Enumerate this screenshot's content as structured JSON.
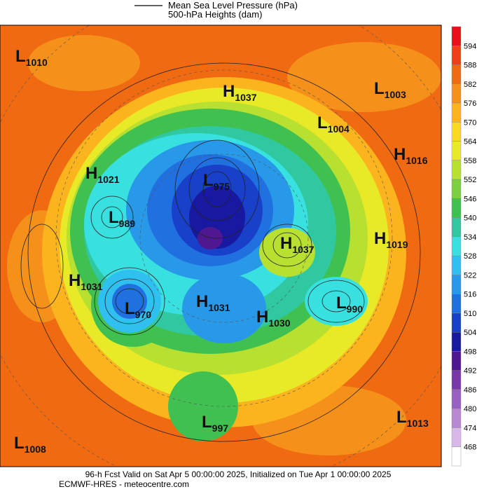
{
  "legend": {
    "line_label": "Mean Sea Level Pressure (hPa)",
    "fill_label": "500-hPa Heights (dam)"
  },
  "centers": [
    {
      "kind": "L",
      "value": "1010"
    },
    {
      "kind": "H",
      "value": "1037"
    },
    {
      "kind": "L",
      "value": "1003"
    },
    {
      "kind": "L",
      "value": "1004"
    },
    {
      "kind": "H",
      "value": "1016"
    },
    {
      "kind": "H",
      "value": "1021"
    },
    {
      "kind": "L",
      "value": "975"
    },
    {
      "kind": "L",
      "value": "989"
    },
    {
      "kind": "H",
      "value": "1037"
    },
    {
      "kind": "H",
      "value": "1019"
    },
    {
      "kind": "H",
      "value": "1031"
    },
    {
      "kind": "L",
      "value": "970"
    },
    {
      "kind": "H",
      "value": "1031"
    },
    {
      "kind": "H",
      "value": "1030"
    },
    {
      "kind": "L",
      "value": "990"
    },
    {
      "kind": "L",
      "value": "997"
    },
    {
      "kind": "L",
      "value": "1013"
    },
    {
      "kind": "L",
      "value": "1008"
    }
  ],
  "colorbar": {
    "levels": [
      594,
      588,
      582,
      576,
      570,
      564,
      558,
      552,
      546,
      540,
      534,
      528,
      522,
      516,
      510,
      504,
      498,
      492,
      486,
      480,
      474,
      468
    ],
    "colors": [
      "#e8101a",
      "#f0401a",
      "#f06a12",
      "#f5901a",
      "#fbb41e",
      "#f8d820",
      "#e8ea28",
      "#b8e030",
      "#7cd040",
      "#40c050",
      "#30c8a0",
      "#38e0e0",
      "#30c0f0",
      "#2898e8",
      "#2070e0",
      "#1840c8",
      "#1818a0",
      "#501890",
      "#7838a8",
      "#9860c0",
      "#b888d0",
      "#d8b8e8",
      "#ffffff"
    ]
  },
  "footer": {
    "line1": "96-h Fcst Valid on Sat Apr  5 00:00:00 2025, Initialized on Tue Apr  1 00:00:00 2025",
    "line2": "ECMWF-HRES  - meteocentre.com"
  }
}
